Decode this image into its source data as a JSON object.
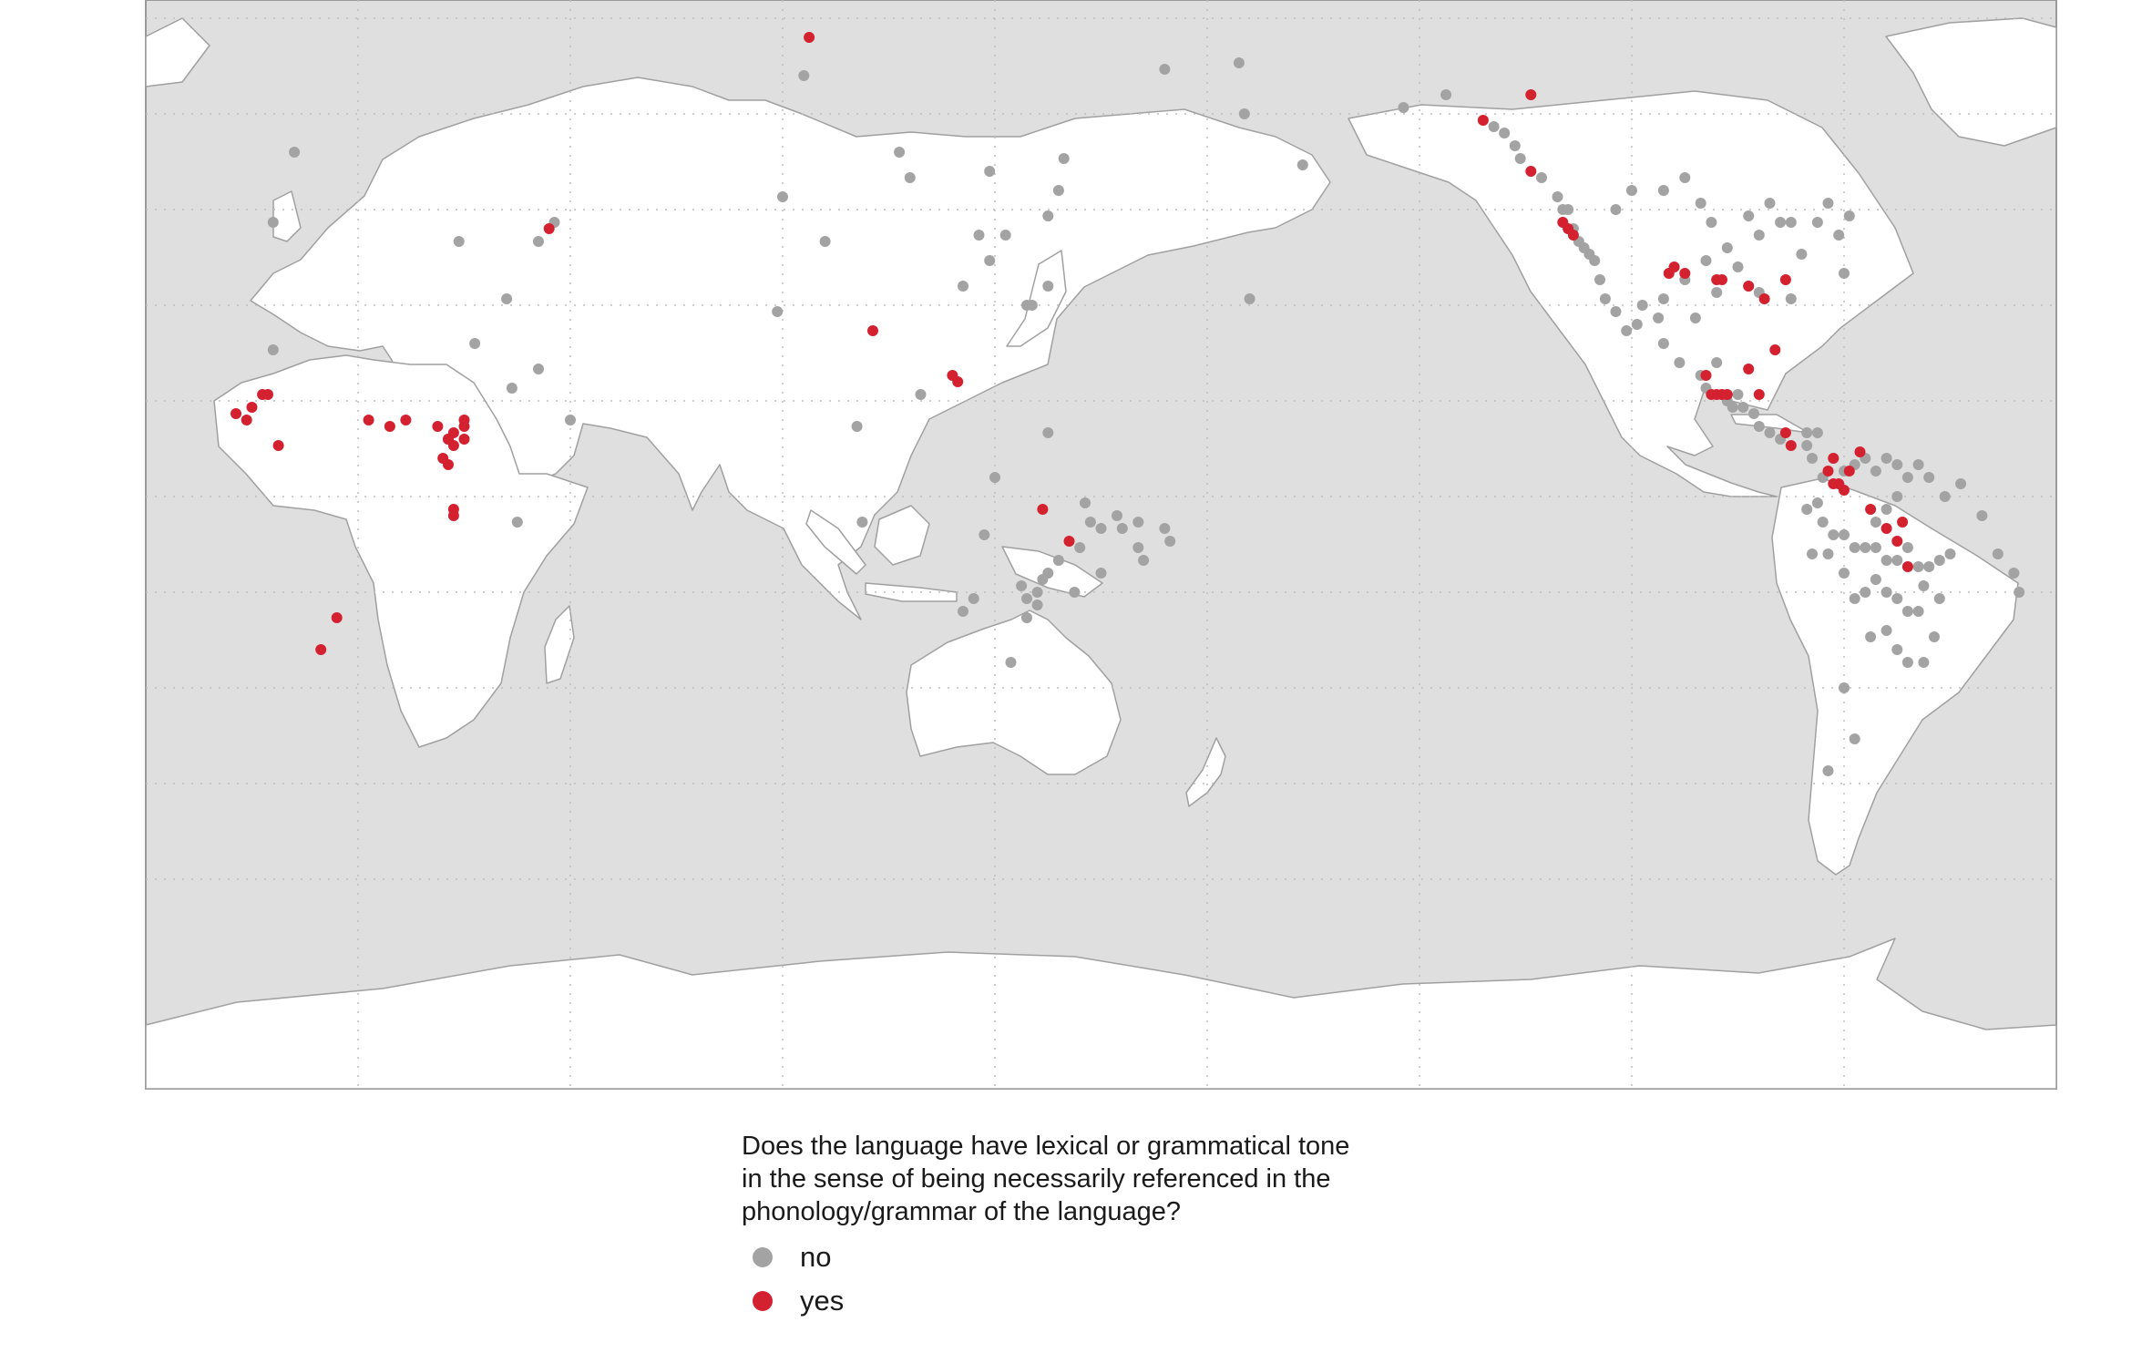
{
  "colors": {
    "no": "#a3a3a3",
    "yes": "#d42130",
    "ocean": "#dfdfdf",
    "land": "#ffffff",
    "border": "#9a9a9a"
  },
  "legend": {
    "title": "Does the language have lexical or grammatical tone\nin the sense of being necessarily referenced in the\nphonology/grammar of the language?",
    "items": [
      {
        "label": "no",
        "value": "no"
      },
      {
        "label": "yes",
        "value": "yes"
      }
    ]
  },
  "map_data": {
    "projection": "equirectangular, Pacific-centred",
    "points": {
      "no": [
        [
          -2,
          54
        ],
        [
          -6,
          43
        ],
        [
          44,
          40
        ],
        [
          47,
          43
        ],
        [
          29,
          40
        ],
        [
          38,
          31
        ],
        [
          32,
          24
        ],
        [
          44,
          20
        ],
        [
          39,
          17
        ],
        [
          -6,
          23
        ],
        [
          50,
          12
        ],
        [
          40,
          -4
        ],
        [
          94,
          66
        ],
        [
          112,
          54
        ],
        [
          90,
          47
        ],
        [
          114,
          50
        ],
        [
          129,
          51
        ],
        [
          127,
          41
        ],
        [
          129,
          37
        ],
        [
          142,
          48
        ],
        [
          140,
          44
        ],
        [
          143,
          53
        ],
        [
          162,
          67
        ],
        [
          176,
          68
        ],
        [
          177,
          60
        ],
        [
          188,
          52
        ],
        [
          136,
          30
        ],
        [
          140,
          33
        ],
        [
          132,
          41
        ],
        [
          137,
          30
        ],
        [
          98,
          40
        ],
        [
          89,
          29
        ],
        [
          104,
          11
        ],
        [
          116,
          16
        ],
        [
          124,
          33
        ],
        [
          130,
          3
        ],
        [
          140,
          10
        ],
        [
          105,
          -4
        ],
        [
          142,
          -10
        ],
        [
          146,
          -8
        ],
        [
          150,
          -12
        ],
        [
          126,
          -16
        ],
        [
          124,
          -18
        ],
        [
          133,
          -26
        ],
        [
          153,
          -3
        ],
        [
          154,
          -5
        ],
        [
          157,
          -8
        ],
        [
          158,
          -10
        ],
        [
          148,
          -4
        ],
        [
          162,
          -5
        ],
        [
          163,
          -7
        ],
        [
          157,
          -4
        ],
        [
          145,
          -15
        ],
        [
          136,
          -19
        ],
        [
          138,
          -17
        ],
        [
          138,
          -15
        ],
        [
          139,
          -13
        ],
        [
          135,
          -14
        ],
        [
          136,
          -16
        ],
        [
          140,
          -12
        ],
        [
          150,
          -5
        ],
        [
          147,
          -1
        ],
        [
          128,
          -6
        ],
        [
          178,
          31
        ],
        [
          -153,
          61
        ],
        [
          -145,
          63
        ],
        [
          -136,
          58
        ],
        [
          -134,
          57
        ],
        [
          -132,
          55
        ],
        [
          -131,
          53
        ],
        [
          -127,
          50
        ],
        [
          -124,
          47
        ],
        [
          -123,
          45
        ],
        [
          -122,
          45
        ],
        [
          -121,
          42
        ],
        [
          -120,
          40
        ],
        [
          -119,
          39
        ],
        [
          -118,
          38
        ],
        [
          -117,
          37
        ],
        [
          -116,
          34
        ],
        [
          -115,
          31
        ],
        [
          -113,
          29
        ],
        [
          -111,
          26
        ],
        [
          -109,
          27
        ],
        [
          -108,
          30
        ],
        [
          -113,
          45
        ],
        [
          -110,
          48
        ],
        [
          -104,
          48
        ],
        [
          -100,
          50
        ],
        [
          -97,
          46
        ],
        [
          -95,
          43
        ],
        [
          -88,
          44
        ],
        [
          -86,
          41
        ],
        [
          -82,
          43
        ],
        [
          -80,
          43
        ],
        [
          -84,
          46
        ],
        [
          -92,
          39
        ],
        [
          -96,
          37
        ],
        [
          -100,
          34
        ],
        [
          -104,
          31
        ],
        [
          -98,
          28
        ],
        [
          -94,
          32
        ],
        [
          -90,
          36
        ],
        [
          -88,
          33
        ],
        [
          -86,
          32
        ],
        [
          -78,
          38
        ],
        [
          -75,
          43
        ],
        [
          -73,
          46
        ],
        [
          -71,
          41
        ],
        [
          -69,
          44
        ],
        [
          -80,
          31
        ],
        [
          -70,
          35
        ],
        [
          -97,
          19
        ],
        [
          -96,
          17
        ],
        [
          -93,
          16
        ],
        [
          -92,
          15
        ],
        [
          -91,
          14
        ],
        [
          -90,
          16
        ],
        [
          -89,
          14
        ],
        [
          -87,
          13
        ],
        [
          -86,
          11
        ],
        [
          -84,
          10
        ],
        [
          -82,
          9
        ],
        [
          -94,
          21
        ],
        [
          -101,
          21
        ],
        [
          -104,
          24
        ],
        [
          -105,
          28
        ],
        [
          -77,
          10
        ],
        [
          -75,
          10
        ],
        [
          -77,
          8
        ],
        [
          -76,
          6
        ],
        [
          -74,
          3
        ],
        [
          -72,
          6
        ],
        [
          -70,
          4
        ],
        [
          -68,
          5
        ],
        [
          -66,
          6
        ],
        [
          -64,
          4
        ],
        [
          -62,
          6
        ],
        [
          -60,
          5
        ],
        [
          -58,
          3
        ],
        [
          -56,
          5
        ],
        [
          -54,
          3
        ],
        [
          -75,
          -1
        ],
        [
          -77,
          -2
        ],
        [
          -74,
          -4
        ],
        [
          -72,
          -6
        ],
        [
          -70,
          -6
        ],
        [
          -68,
          -8
        ],
        [
          -66,
          -8
        ],
        [
          -64,
          -8
        ],
        [
          -62,
          -10
        ],
        [
          -60,
          -10
        ],
        [
          -58,
          -8
        ],
        [
          -56,
          -11
        ],
        [
          -54,
          -11
        ],
        [
          -52,
          -10
        ],
        [
          -50,
          -9
        ],
        [
          -64,
          -13
        ],
        [
          -62,
          -15
        ],
        [
          -60,
          -16
        ],
        [
          -58,
          -18
        ],
        [
          -56,
          -18
        ],
        [
          -55,
          -14
        ],
        [
          -52,
          -16
        ],
        [
          -66,
          -15
        ],
        [
          -68,
          -16
        ],
        [
          -70,
          -12
        ],
        [
          -73,
          -9
        ],
        [
          -76,
          -9
        ],
        [
          -65,
          -22
        ],
        [
          -62,
          -21
        ],
        [
          -60,
          -24
        ],
        [
          -58,
          -26
        ],
        [
          -55,
          -26
        ],
        [
          -53,
          -22
        ],
        [
          -70,
          -30
        ],
        [
          -73,
          -43
        ],
        [
          -68,
          -38
        ],
        [
          -41,
          -9
        ],
        [
          -38,
          -12
        ],
        [
          -37,
          -15
        ],
        [
          -44,
          -3
        ],
        [
          -48,
          2
        ],
        [
          -51,
          0
        ],
        [
          -60,
          0
        ],
        [
          -62,
          -2
        ],
        [
          -64,
          -4
        ]
      ],
      "yes": [
        [
          -13,
          13
        ],
        [
          -10,
          14
        ],
        [
          -8,
          16
        ],
        [
          -7,
          16
        ],
        [
          -11,
          12
        ],
        [
          -5,
          8
        ],
        [
          12,
          12
        ],
        [
          16,
          11
        ],
        [
          19,
          12
        ],
        [
          25,
          11
        ],
        [
          28,
          10
        ],
        [
          27,
          9
        ],
        [
          28,
          8
        ],
        [
          27,
          9
        ],
        [
          30,
          9
        ],
        [
          30,
          12
        ],
        [
          30,
          11
        ],
        [
          26,
          6
        ],
        [
          27,
          5
        ],
        [
          28,
          -2
        ],
        [
          28,
          -3
        ],
        [
          6,
          -19
        ],
        [
          3,
          -24
        ],
        [
          46,
          42
        ],
        [
          95,
          72
        ],
        [
          107,
          26
        ],
        [
          122,
          19
        ],
        [
          123,
          18
        ],
        [
          139,
          -2
        ],
        [
          144,
          -7
        ],
        [
          -138,
          59
        ],
        [
          -129,
          63
        ],
        [
          -129,
          51
        ],
        [
          -123,
          43
        ],
        [
          -122,
          42
        ],
        [
          -121,
          41
        ],
        [
          -103,
          35
        ],
        [
          -102,
          36
        ],
        [
          -100,
          35
        ],
        [
          -94,
          34
        ],
        [
          -93,
          34
        ],
        [
          -88,
          33
        ],
        [
          -85,
          31
        ],
        [
          -81,
          34
        ],
        [
          -83,
          23
        ],
        [
          -96,
          19
        ],
        [
          -95,
          16
        ],
        [
          -94,
          16
        ],
        [
          -93,
          16
        ],
        [
          -92,
          16
        ],
        [
          -88,
          20
        ],
        [
          -86,
          16
        ],
        [
          -81,
          10
        ],
        [
          -80,
          8
        ],
        [
          -72,
          6
        ],
        [
          -73,
          4
        ],
        [
          -72,
          2
        ],
        [
          -71,
          2
        ],
        [
          -70,
          1
        ],
        [
          -69,
          4
        ],
        [
          -67,
          7
        ],
        [
          -65,
          -2
        ],
        [
          -62,
          -5
        ],
        [
          -59,
          -4
        ],
        [
          -60,
          -7
        ],
        [
          -58,
          -11
        ]
      ]
    }
  }
}
